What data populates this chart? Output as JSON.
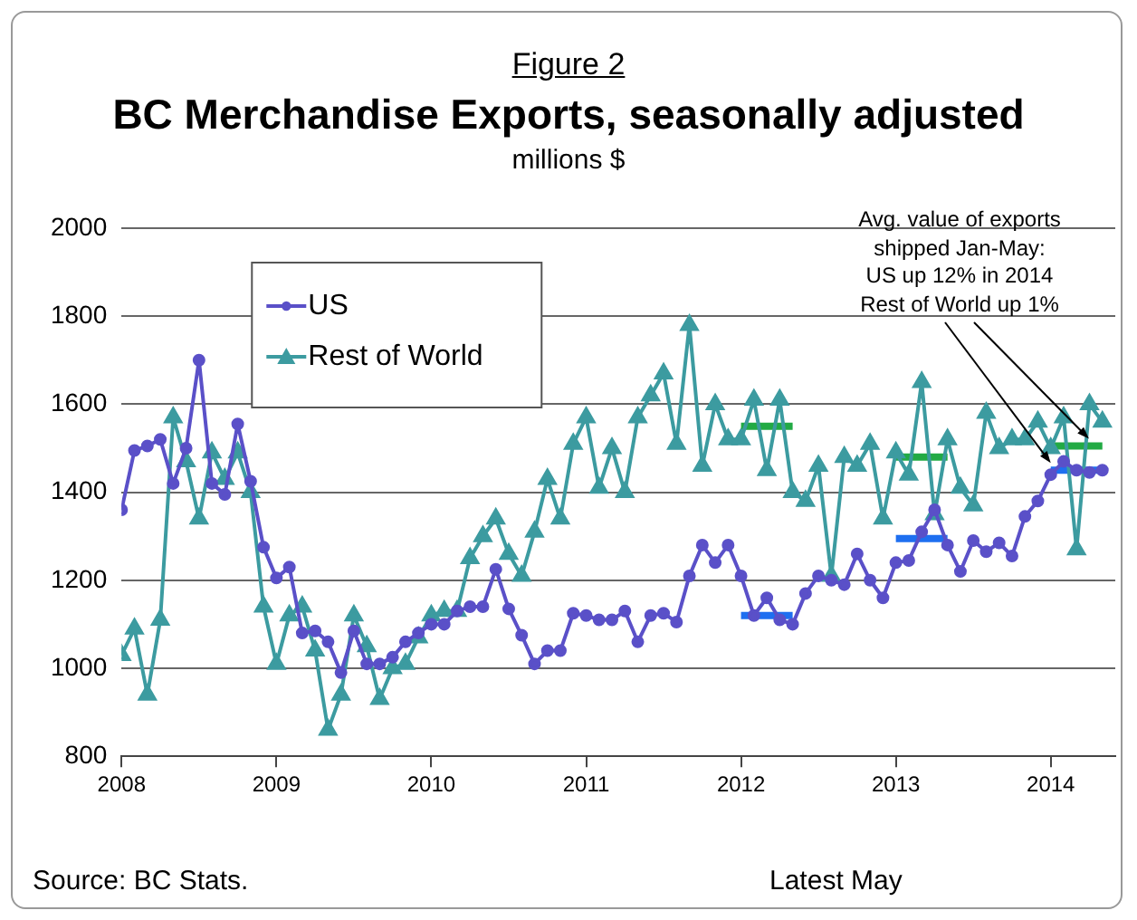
{
  "chart_data": {
    "type": "line",
    "title": "BC Merchandise Exports, seasonally adjusted",
    "subtitle": "millions $",
    "annotations": [
      "Figure 2",
      {
        "text": "Avg. value of exports\nshipped Jan-May:\nUS up 12% in 2014\nRest of World up 1%",
        "x": "2014-01",
        "y": 1450
      },
      "Source: BC Stats.",
      "Latest May"
    ],
    "x": [
      "2008-01",
      "2008-02",
      "2008-03",
      "2008-04",
      "2008-05",
      "2008-06",
      "2008-07",
      "2008-08",
      "2008-09",
      "2008-10",
      "2008-11",
      "2008-12",
      "2009-01",
      "2009-02",
      "2009-03",
      "2009-04",
      "2009-05",
      "2009-06",
      "2009-07",
      "2009-08",
      "2009-09",
      "2009-10",
      "2009-11",
      "2009-12",
      "2010-01",
      "2010-02",
      "2010-03",
      "2010-04",
      "2010-05",
      "2010-06",
      "2010-07",
      "2010-08",
      "2010-09",
      "2010-10",
      "2010-11",
      "2010-12",
      "2011-01",
      "2011-02",
      "2011-03",
      "2011-04",
      "2011-05",
      "2011-06",
      "2011-07",
      "2011-08",
      "2011-09",
      "2011-10",
      "2011-11",
      "2011-12",
      "2012-01",
      "2012-02",
      "2012-03",
      "2012-04",
      "2012-05",
      "2012-06",
      "2012-07",
      "2012-08",
      "2012-09",
      "2012-10",
      "2012-11",
      "2012-12",
      "2013-01",
      "2013-02",
      "2013-03",
      "2013-04",
      "2013-05",
      "2013-06",
      "2013-07",
      "2013-08",
      "2013-09",
      "2013-10",
      "2013-11",
      "2013-12",
      "2014-01",
      "2014-02",
      "2014-03",
      "2014-04",
      "2014-05"
    ],
    "series": [
      {
        "name": "US",
        "color": "#5a50c8",
        "marker": "circle",
        "values": [
          1360,
          1495,
          1505,
          1520,
          1420,
          1500,
          1700,
          1420,
          1395,
          1555,
          1425,
          1275,
          1205,
          1230,
          1080,
          1085,
          1060,
          990,
          1085,
          1010,
          1010,
          1025,
          1060,
          1080,
          1100,
          1100,
          1130,
          1140,
          1140,
          1225,
          1135,
          1075,
          1010,
          1040,
          1040,
          1125,
          1120,
          1110,
          1110,
          1130,
          1060,
          1120,
          1125,
          1105,
          1210,
          1280,
          1240,
          1280,
          1210,
          1120,
          1160,
          1110,
          1100,
          1170,
          1210,
          1200,
          1190,
          1260,
          1200,
          1160,
          1240,
          1245,
          1310,
          1360,
          1280,
          1220,
          1290,
          1265,
          1285,
          1255,
          1345,
          1380,
          1440,
          1470,
          1450,
          1445,
          1450
        ]
      },
      {
        "name": "Rest of World",
        "color": "#3c9ba0",
        "marker": "triangle",
        "values": [
          1030,
          1090,
          940,
          1110,
          1570,
          1470,
          1340,
          1490,
          1430,
          1490,
          1400,
          1140,
          1010,
          1120,
          1140,
          1040,
          860,
          940,
          1120,
          1050,
          930,
          1000,
          1010,
          1070,
          1120,
          1130,
          1130,
          1250,
          1300,
          1340,
          1260,
          1210,
          1310,
          1430,
          1340,
          1510,
          1570,
          1410,
          1500,
          1400,
          1570,
          1620,
          1670,
          1510,
          1780,
          1460,
          1600,
          1520,
          1520,
          1610,
          1450,
          1610,
          1400,
          1380,
          1460,
          1210,
          1480,
          1460,
          1510,
          1340,
          1490,
          1440,
          1650,
          1350,
          1520,
          1410,
          1370,
          1580,
          1500,
          1520,
          1520,
          1560,
          1500,
          1570,
          1270,
          1600,
          1560
        ]
      },
      {
        "color": "#1e6ff0",
        "marker": "none",
        "x": [
          "2012-01",
          "2012-05",
          "2012-06",
          "2013-01",
          "2013-05",
          "2013-06",
          "2014-01",
          "2014-05"
        ],
        "values": [
          1120,
          1120,
          null,
          1295,
          1295,
          null,
          1450,
          1450
        ]
      },
      {
        "color": "#22aa44",
        "marker": "none",
        "x": [
          "2012-01",
          "2012-05",
          "2012-06",
          "2013-01",
          "2013-05",
          "2013-06",
          "2014-01",
          "2014-05"
        ],
        "values": [
          1550,
          1550,
          null,
          1480,
          1480,
          null,
          1505,
          1505
        ]
      }
    ],
    "xlim": [
      "2008-01",
      "2014-06"
    ],
    "xticks": [
      "2008",
      "2009",
      "2010",
      "2011",
      "2012",
      "2013",
      "2014"
    ],
    "ylim": [
      800,
      2000
    ],
    "yticks": [
      800,
      1000,
      1200,
      1400,
      1600,
      1800,
      2000
    ],
    "grid": "y",
    "legend": "top left",
    "line_style": "solid"
  }
}
